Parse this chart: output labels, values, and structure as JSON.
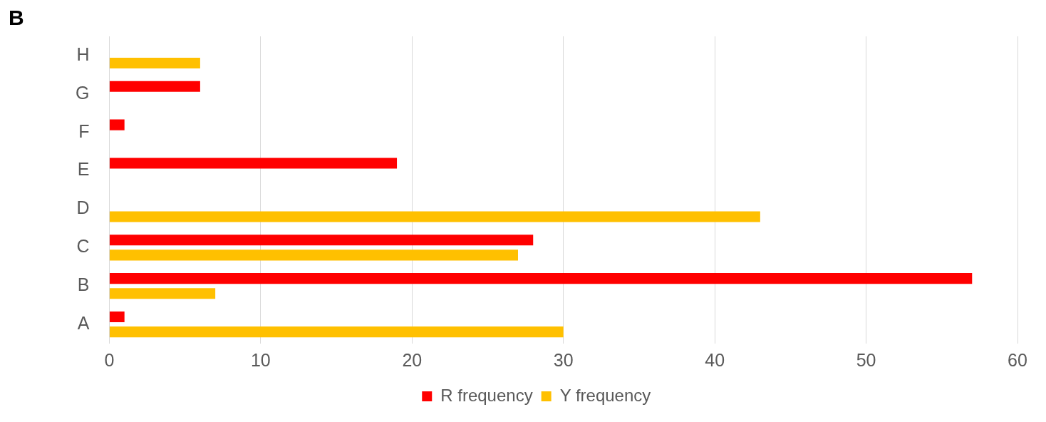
{
  "chart_data": {
    "type": "bar",
    "orientation": "horizontal",
    "categories": [
      "H",
      "G",
      "F",
      "E",
      "D",
      "C",
      "B",
      "A"
    ],
    "series": [
      {
        "name": "R frequency",
        "color": "#ff0000",
        "values": [
          null,
          6,
          1,
          19,
          null,
          28,
          57,
          1
        ]
      },
      {
        "name": "Y frequency",
        "color": "#ffc000",
        "values": [
          6,
          null,
          null,
          null,
          43,
          27,
          7,
          30
        ]
      }
    ],
    "xlim": [
      0,
      60
    ],
    "xticks": [
      0,
      10,
      20,
      30,
      40,
      50,
      60
    ],
    "grid": "x",
    "legend": "bottom",
    "annotations": [
      "B"
    ]
  }
}
